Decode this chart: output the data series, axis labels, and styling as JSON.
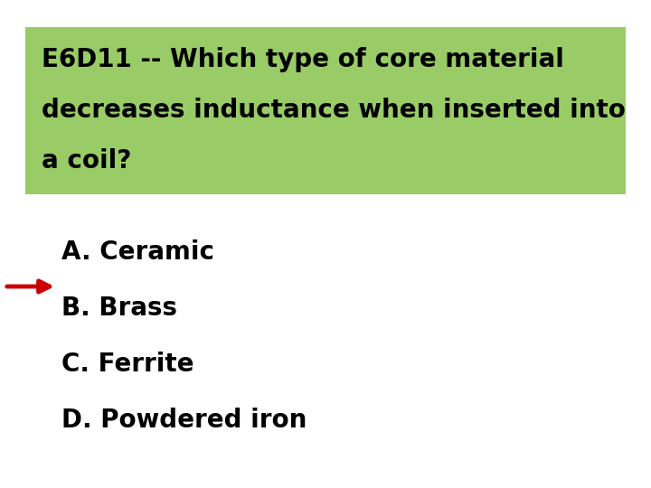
{
  "question_line1": "E6D11 -- Which type of core material",
  "question_line2": "decreases inductance when inserted into",
  "question_line3": "a coil?",
  "options": [
    "A. Ceramic",
    "B. Brass",
    "C. Ferrite",
    "D. Powdered iron"
  ],
  "correct_index": 1,
  "background_color": "#ffffff",
  "question_box_color": "#99cc66",
  "question_text_color": "#000000",
  "option_text_color": "#000000",
  "arrow_color": "#cc0000",
  "question_fontsize": 20,
  "option_fontsize": 20
}
